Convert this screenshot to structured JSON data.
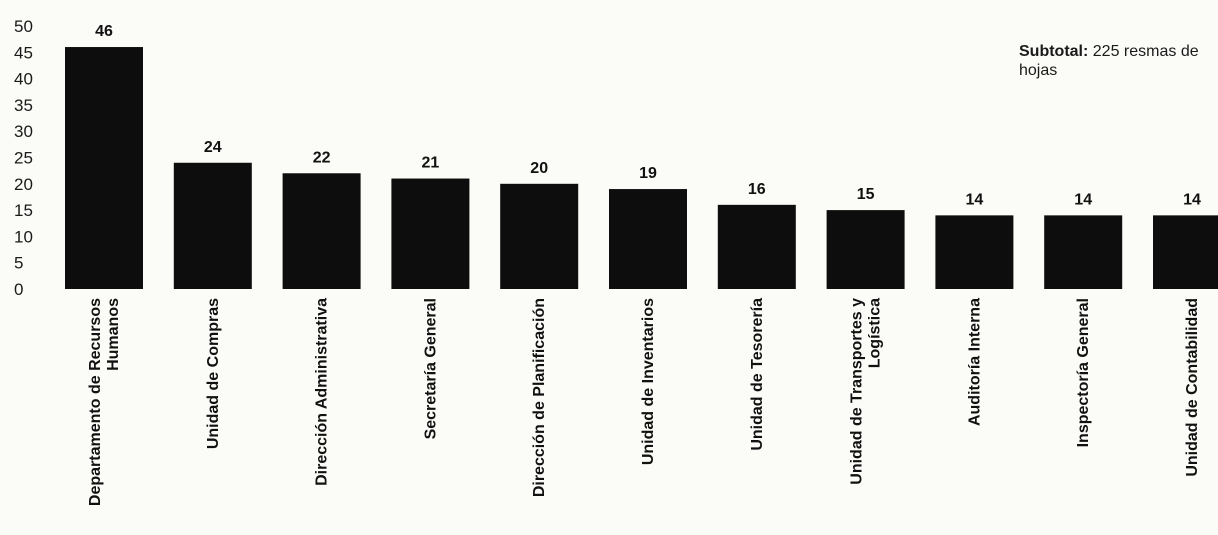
{
  "chart_data": {
    "type": "bar",
    "categories": [
      "Departamento de Recursos Humanos",
      "Unidad de Compras",
      "Dirección Administrativa",
      "Secretaría General",
      "Dirección de Planificación",
      "Unidad de Inventarios",
      "Unidad de Tesorería",
      "Unidad de Transportes y Logística",
      "Auditoría Interna",
      "Inspectoría General",
      "Unidad de Contabilidad"
    ],
    "values": [
      46,
      24,
      22,
      21,
      20,
      19,
      16,
      15,
      14,
      14,
      14
    ],
    "ylim": [
      0,
      50
    ],
    "yticks": [
      0,
      5,
      10,
      15,
      20,
      25,
      30,
      35,
      40,
      45,
      50
    ],
    "bar_color": "#0d0d0d",
    "grid": false,
    "data_labels": true,
    "annotation": {
      "bold_part": "Subtotal:",
      "rest": " 225 resmas de hojas"
    }
  }
}
